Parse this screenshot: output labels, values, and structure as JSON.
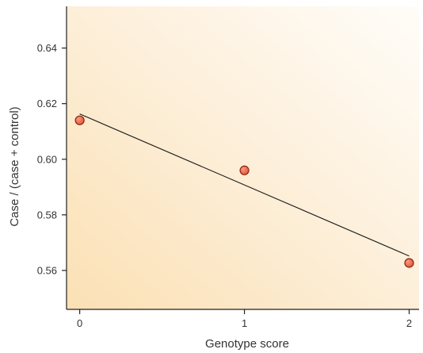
{
  "chart_data": {
    "type": "scatter",
    "title": "",
    "xlabel": "Genotype score",
    "ylabel": "Case / (case + control)",
    "xlim": [
      -0.08,
      2.06
    ],
    "ylim": [
      0.546,
      0.655
    ],
    "x_ticks": [
      0,
      1,
      2
    ],
    "x_tick_labels": [
      "0",
      "1",
      "2"
    ],
    "y_ticks": [
      0.56,
      0.58,
      0.6,
      0.62,
      0.64
    ],
    "y_tick_labels": [
      "0.56",
      "0.58",
      "0.60",
      "0.62",
      "0.64"
    ],
    "grid": false,
    "points": [
      {
        "x": 0,
        "y": 0.614
      },
      {
        "x": 1,
        "y": 0.596
      },
      {
        "x": 2,
        "y": 0.5627
      }
    ],
    "fit_line": {
      "x": [
        0,
        2
      ],
      "y": [
        0.6163,
        0.5652
      ]
    },
    "colors": {
      "point_fill": "#e4553c",
      "point_stroke": "#8a2512",
      "fit_line": "#1a1a1a",
      "background_warm": "#fbe0b4",
      "background_light": "#fffdf9"
    }
  }
}
